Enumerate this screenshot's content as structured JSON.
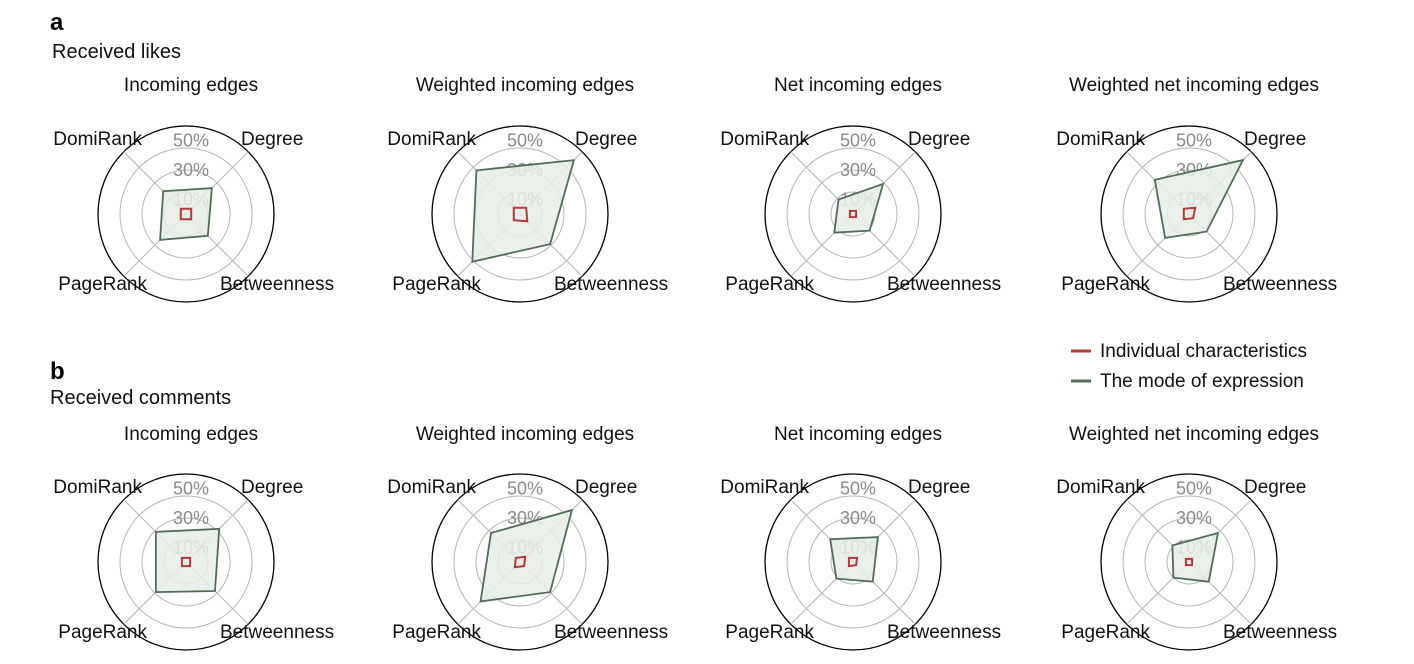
{
  "sections": [
    {
      "letter": "a",
      "title": "Received likes"
    },
    {
      "letter": "b",
      "title": "Received comments"
    }
  ],
  "legend": [
    {
      "label": "Individual characteristics",
      "color": "#b23a3a"
    },
    {
      "label": "The mode of expression",
      "color": "#4e6e55"
    }
  ],
  "colors": {
    "individual": "#b23a3a",
    "mode": "#4e6e55",
    "mode_fill": "#e6eee6",
    "grid": "#b5b5b5",
    "outer_ring": "#000000",
    "tick": "#8a8a8a"
  },
  "chart_data": [
    {
      "type": "radar",
      "section": "a",
      "title": "Incoming edges",
      "axes": [
        "Degree",
        "Betweenness",
        "PageRank",
        "DomiRank"
      ],
      "ticks": [
        "10%",
        "30%",
        "50%"
      ],
      "rmax": 60,
      "series": [
        {
          "name": "Individual characteristics",
          "values": [
            5,
            5,
            5,
            5
          ]
        },
        {
          "name": "The mode of expression",
          "values": [
            25,
            21,
            25,
            22
          ]
        }
      ]
    },
    {
      "type": "radar",
      "section": "a",
      "title": "Weighted incoming edges",
      "axes": [
        "Degree",
        "Betweenness",
        "PageRank",
        "DomiRank"
      ],
      "ticks": [
        "10%",
        "30%",
        "50%"
      ],
      "rmax": 60,
      "series": [
        {
          "name": "Individual characteristics",
          "values": [
            6,
            7,
            6,
            6
          ]
        },
        {
          "name": "The mode of expression",
          "values": [
            52,
            29,
            46,
            42
          ]
        }
      ]
    },
    {
      "type": "radar",
      "section": "a",
      "title": "Net incoming edges",
      "axes": [
        "Degree",
        "Betweenness",
        "PageRank",
        "DomiRank"
      ],
      "ticks": [
        "10%",
        "30%",
        "50%"
      ],
      "rmax": 60,
      "series": [
        {
          "name": "Individual characteristics",
          "values": [
            3,
            3,
            3,
            3
          ]
        },
        {
          "name": "The mode of expression",
          "values": [
            29,
            16,
            18,
            14
          ]
        }
      ]
    },
    {
      "type": "radar",
      "section": "a",
      "title": "Weighted net incoming edges",
      "axes": [
        "Degree",
        "Betweenness",
        "PageRank",
        "DomiRank"
      ],
      "ticks": [
        "10%",
        "30%",
        "50%"
      ],
      "rmax": 60,
      "series": [
        {
          "name": "Individual characteristics",
          "values": [
            6,
            4,
            5,
            5
          ]
        },
        {
          "name": "The mode of expression",
          "values": [
            52,
            17,
            23,
            33
          ]
        }
      ]
    },
    {
      "type": "radar",
      "section": "b",
      "title": "Incoming edges",
      "axes": [
        "Degree",
        "Betweenness",
        "PageRank",
        "DomiRank"
      ],
      "ticks": [
        "10%",
        "30%",
        "50%"
      ],
      "rmax": 60,
      "series": [
        {
          "name": "Individual characteristics",
          "values": [
            4,
            4,
            4,
            4
          ]
        },
        {
          "name": "The mode of expression",
          "values": [
            32,
            28,
            29,
            29
          ]
        }
      ]
    },
    {
      "type": "radar",
      "section": "b",
      "title": "Weighted incoming edges",
      "axes": [
        "Degree",
        "Betweenness",
        "PageRank",
        "DomiRank"
      ],
      "ticks": [
        "10%",
        "30%",
        "50%"
      ],
      "rmax": 60,
      "series": [
        {
          "name": "Individual characteristics",
          "values": [
            5,
            4,
            5,
            4
          ]
        },
        {
          "name": "The mode of expression",
          "values": [
            50,
            29,
            38,
            28
          ]
        }
      ]
    },
    {
      "type": "radar",
      "section": "b",
      "title": "Net incoming edges",
      "axes": [
        "Degree",
        "Betweenness",
        "PageRank",
        "DomiRank"
      ],
      "ticks": [
        "10%",
        "30%",
        "50%"
      ],
      "rmax": 60,
      "series": [
        {
          "name": "Individual characteristics",
          "values": [
            4,
            3,
            4,
            4
          ]
        },
        {
          "name": "The mode of expression",
          "values": [
            24,
            19,
            16,
            22
          ]
        }
      ]
    },
    {
      "type": "radar",
      "section": "b",
      "title": "Weighted net incoming edges",
      "axes": [
        "Degree",
        "Betweenness",
        "PageRank",
        "DomiRank"
      ],
      "ticks": [
        "10%",
        "30%",
        "50%"
      ],
      "rmax": 60,
      "series": [
        {
          "name": "Individual characteristics",
          "values": [
            3,
            3,
            3,
            3
          ]
        },
        {
          "name": "The mode of expression",
          "values": [
            28,
            19,
            15,
            16
          ]
        }
      ]
    }
  ]
}
